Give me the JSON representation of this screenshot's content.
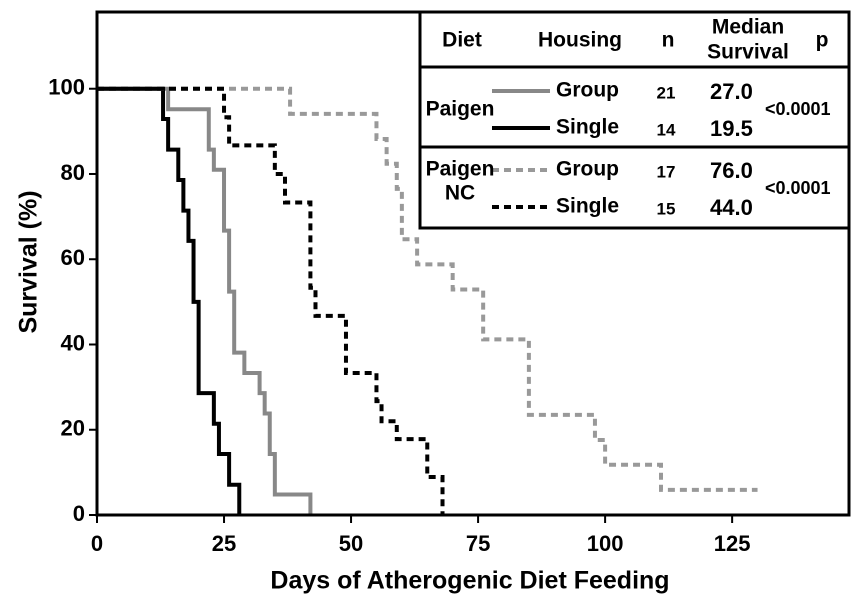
{
  "chart_data": {
    "type": "step",
    "x_label": "Days of Atherogenic Diet Feeding",
    "y_label": "Survival (%)",
    "xlim": [
      0,
      148
    ],
    "xticks": [
      0,
      25,
      50,
      75,
      100,
      125
    ],
    "ylim": [
      0,
      118
    ],
    "yticks": [
      0,
      20,
      40,
      60,
      80,
      100
    ],
    "series": [
      {
        "name": "Group",
        "color": "#888888",
        "dashed": false,
        "n": 21,
        "median": 27.0,
        "median_label": "27.0",
        "x": [
          0,
          14,
          22,
          23,
          25,
          26,
          27,
          29,
          32,
          33,
          34,
          35,
          42
        ],
        "values": [
          100,
          95.2,
          85.7,
          81,
          66.7,
          52.4,
          38.1,
          33.3,
          28.6,
          23.8,
          14.3,
          4.8,
          0
        ]
      },
      {
        "name": "Single",
        "color": "#000000",
        "dashed": false,
        "n": 14,
        "median": 19.5,
        "median_label": "19.5",
        "x": [
          0,
          13,
          14,
          16,
          17,
          18,
          19,
          20,
          23,
          24,
          26,
          28
        ],
        "values": [
          100,
          92.9,
          85.7,
          78.6,
          71.4,
          64.3,
          50,
          28.6,
          21.4,
          14.3,
          7.1,
          0
        ]
      },
      {
        "name": "Group",
        "color": "#999999",
        "dashed": true,
        "n": 17,
        "median": 76.0,
        "median_label": "76.0",
        "x": [
          0,
          38,
          55,
          57,
          59,
          60,
          63,
          70,
          76,
          85,
          98,
          100,
          111,
          130
        ],
        "values": [
          100,
          94.1,
          88.2,
          82.4,
          76.5,
          64.7,
          58.8,
          52.9,
          41.2,
          23.5,
          17.6,
          11.8,
          5.9,
          5.9
        ]
      },
      {
        "name": "Single",
        "color": "#000000",
        "dashed": true,
        "n": 15,
        "median": 44.0,
        "median_label": "44.0",
        "x": [
          0,
          25,
          26,
          35,
          37,
          42,
          43,
          45,
          49,
          55,
          56,
          59,
          65,
          68
        ],
        "values": [
          100,
          93.3,
          86.7,
          80,
          73.3,
          53.3,
          46.7,
          46.7,
          33.3,
          26.7,
          22,
          17.8,
          8.9,
          0
        ]
      }
    ],
    "legend_table": {
      "header": [
        "Diet",
        "Housing",
        "n",
        [
          "Median",
          "Survival"
        ],
        "p"
      ],
      "groups": [
        {
          "diet": [
            "Paigen"
          ],
          "p": "<0.0001"
        },
        {
          "diet": [
            "Paigen",
            "NC"
          ],
          "p": "<0.0001"
        }
      ]
    }
  }
}
